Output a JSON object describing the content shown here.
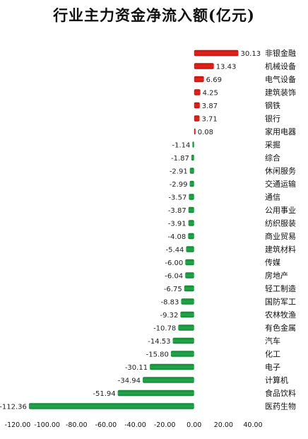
{
  "chart_data": {
    "type": "bar",
    "orientation": "horizontal",
    "title": "行业主力资金净流入额(亿元)",
    "xlim": [
      -120,
      40
    ],
    "xticks": [
      "-120.00",
      "-100.00",
      "-80.00",
      "-60.00",
      "-40.00",
      "-20.00",
      "0.00",
      "20.00",
      "40.00"
    ],
    "categories": [
      "非银金融",
      "机械设备",
      "电气设备",
      "建筑装饰",
      "钢铁",
      "银行",
      "家用电器",
      "采掘",
      "综合",
      "休闲服务",
      "交通运输",
      "通信",
      "公用事业",
      "纺织服装",
      "商业贸易",
      "建筑材料",
      "传媒",
      "房地产",
      "轻工制造",
      "国防军工",
      "农林牧渔",
      "有色金属",
      "汽车",
      "化工",
      "电子",
      "计算机",
      "食品饮料",
      "医药生物"
    ],
    "values": [
      30.13,
      13.43,
      6.69,
      4.25,
      3.87,
      3.71,
      0.08,
      -1.14,
      -1.87,
      -2.91,
      -2.99,
      -3.57,
      -3.87,
      -3.91,
      -4.08,
      -5.44,
      -6.0,
      -6.04,
      -6.75,
      -8.83,
      -9.32,
      -10.78,
      -14.53,
      -15.8,
      -30.11,
      -34.94,
      -51.94,
      -112.36
    ],
    "labels": [
      "30.13",
      "13.43",
      "6.69",
      "4.25",
      "3.87",
      "3.71",
      "0.08",
      "-1.14",
      "-1.87",
      "-2.91",
      "-2.99",
      "-3.57",
      "-3.87",
      "-3.91",
      "-4.08",
      "-5.44",
      "-6.00",
      "-6.04",
      "-6.75",
      "-8.83",
      "-9.32",
      "-10.78",
      "-14.53",
      "-15.80",
      "-30.11",
      "-34.94",
      "-51.94",
      "-112.36"
    ],
    "colors": {
      "positive": "#e8231e",
      "negative": "#22a84a"
    }
  }
}
